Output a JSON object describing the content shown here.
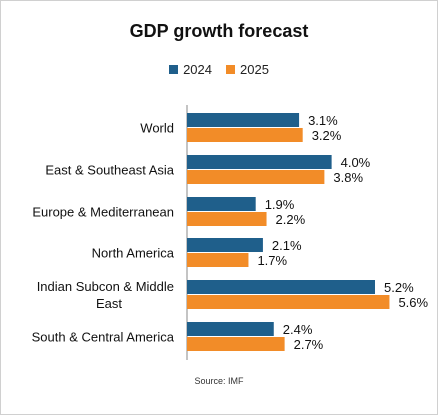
{
  "chart_data": {
    "type": "bar",
    "orientation": "horizontal",
    "title": "GDP growth forecast",
    "categories": [
      [
        "World"
      ],
      [
        "East & Southeast Asia"
      ],
      [
        "Europe & Mediterranean"
      ],
      [
        "North America"
      ],
      [
        "Indian Subcon & Middle",
        "East"
      ],
      [
        "South & Central America"
      ]
    ],
    "series": [
      {
        "name": "2024",
        "color": "#1f5f8b",
        "values": [
          3.1,
          4.0,
          1.9,
          2.1,
          5.2,
          2.4
        ],
        "labels": [
          "3.1%",
          "4.0%",
          "1.9%",
          "2.1%",
          "5.2%",
          "2.4%"
        ]
      },
      {
        "name": "2025",
        "color": "#f28c28",
        "values": [
          3.2,
          3.8,
          2.2,
          1.7,
          5.6,
          2.7
        ],
        "labels": [
          "3.2%",
          "3.8%",
          "2.2%",
          "1.7%",
          "5.6%",
          "2.7%"
        ]
      }
    ],
    "xlim": [
      0,
      6.5
    ],
    "legend": "top",
    "grid": false,
    "source": "Source: IMF"
  }
}
